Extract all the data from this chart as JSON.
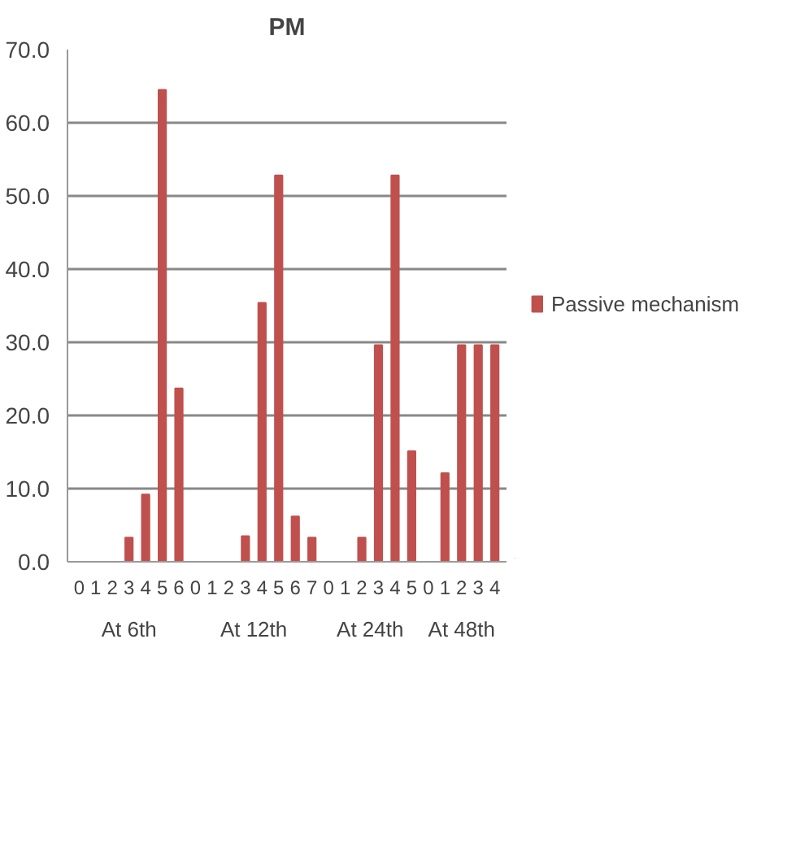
{
  "chart_data": {
    "type": "bar",
    "title": "PM",
    "categories": [
      "0",
      "1",
      "2",
      "3",
      "4",
      "5",
      "6",
      "0",
      "1",
      "2",
      "3",
      "4",
      "5",
      "6",
      "7",
      "0",
      "1",
      "2",
      "3",
      "4",
      "5",
      "0",
      "1",
      "2",
      "3",
      "4"
    ],
    "series": [
      {
        "name": "Passive mechanism",
        "color": "#c0504d",
        "values": [
          0,
          0,
          0,
          3.3,
          9.2,
          64.5,
          23.7,
          0,
          0,
          0,
          3.5,
          35.4,
          52.8,
          6.2,
          3.3,
          0,
          0,
          3.3,
          29.6,
          52.8,
          15.1,
          0,
          12.1,
          29.6,
          29.6,
          29.6
        ]
      }
    ],
    "annotations": [
      "At 6th",
      "At 12th",
      "At 24th",
      "At 48th"
    ],
    "ylim": [
      0,
      70
    ],
    "yticks": [
      {
        "value": 0,
        "label": "0.0"
      },
      {
        "value": 10,
        "label": "10.0"
      },
      {
        "value": 20,
        "label": "20.0"
      },
      {
        "value": 30,
        "label": "30.0"
      },
      {
        "value": 40,
        "label": "40.0"
      },
      {
        "value": 50,
        "label": "50.0"
      },
      {
        "value": 60,
        "label": "60.0"
      },
      {
        "value": 70,
        "label": "70.0"
      }
    ],
    "grid": "y",
    "legend": "right"
  }
}
